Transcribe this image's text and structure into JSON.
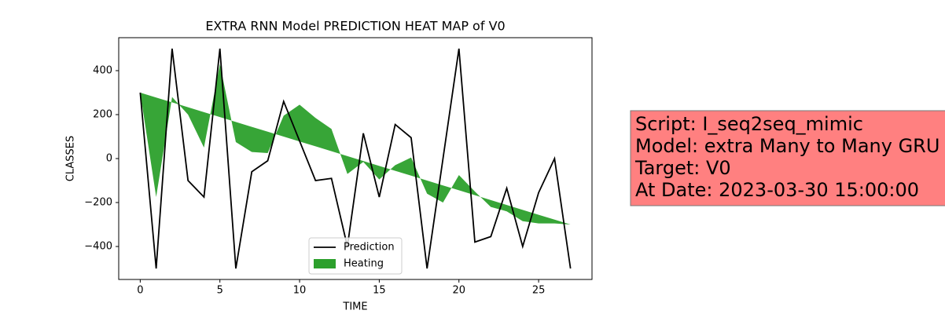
{
  "chart_data": {
    "type": "line",
    "title": "EXTRA RNN Model PREDICTION HEAT MAP of V0",
    "x_label": "TIME",
    "y_label": "CLASSES",
    "x": [
      0,
      1,
      2,
      3,
      4,
      5,
      6,
      7,
      8,
      9,
      10,
      11,
      12,
      13,
      14,
      15,
      16,
      17,
      18,
      19,
      20,
      21,
      22,
      23,
      24,
      25,
      26,
      27
    ],
    "series": [
      {
        "name": "Prediction",
        "color": "#000000",
        "values": [
          300,
          -500,
          500,
          -100,
          -175,
          500,
          -500,
          -60,
          -10,
          260,
          80,
          -100,
          -90,
          -400,
          115,
          -175,
          155,
          95,
          -500,
          0,
          500,
          -380,
          -355,
          -135,
          -400,
          -155,
          0,
          -500
        ]
      }
    ],
    "fill_between": {
      "name": "Heating",
      "color": "#2ca02c",
      "values": [
        300,
        -175,
        280,
        200,
        50,
        430,
        75,
        30,
        25,
        195,
        245,
        185,
        135,
        -70,
        -15,
        -95,
        -30,
        5,
        -160,
        -200,
        -75,
        -150,
        -220,
        -240,
        -285,
        -295,
        -295,
        -300
      ],
      "base": [
        300,
        277.8,
        255.6,
        233.3,
        211.1,
        188.9,
        166.7,
        144.4,
        122.2,
        100,
        77.8,
        55.6,
        33.3,
        11.1,
        -11.1,
        -33.3,
        -55.6,
        -77.8,
        -100,
        -122.2,
        -144.4,
        -166.7,
        -188.9,
        -211.1,
        -233.3,
        -255.6,
        -277.8,
        -300
      ]
    },
    "xlim": [
      -1.35,
      28.35
    ],
    "ylim": [
      -550,
      550
    ],
    "xticks": [
      0,
      5,
      10,
      15,
      20,
      25
    ],
    "yticks": [
      {
        "value": -400,
        "label": "−400"
      },
      {
        "value": -200,
        "label": "−200"
      },
      0,
      200,
      400
    ],
    "legend": "lower center",
    "annotation": [
      "Script: I_seq2seq_mimic",
      "Model: extra Many to Many GRU",
      "Target: V0",
      "At Date: 2023-03-30 15:00:00"
    ]
  }
}
